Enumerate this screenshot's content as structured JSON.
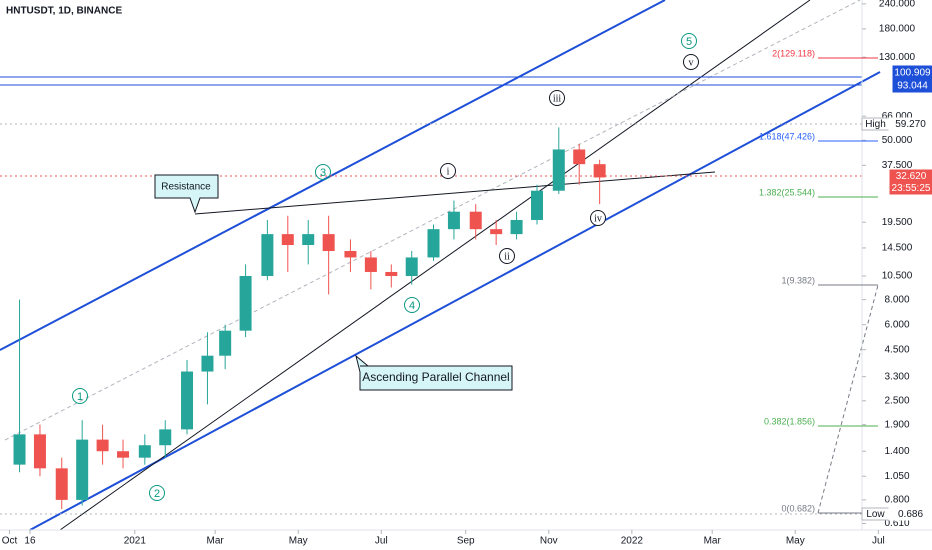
{
  "chart_data": {
    "type": "candlestick",
    "title": "HNTUSDT, 1D, BINANCE",
    "log_scale": true,
    "up_color": "#26a69a",
    "down_color": "#ef5350",
    "x": [
      "2020-10-01",
      "2020-10-16",
      "2020-11-01",
      "2020-11-16",
      "2020-12-01",
      "2020-12-16",
      "2021-01-01",
      "2021-01-16",
      "2021-02-01",
      "2021-02-16",
      "2021-03-01",
      "2021-03-16",
      "2021-04-01",
      "2021-04-16",
      "2021-05-01",
      "2021-05-16",
      "2021-06-01",
      "2021-06-16",
      "2021-07-01",
      "2021-07-16",
      "2021-08-01",
      "2021-08-16",
      "2021-09-01",
      "2021-09-16",
      "2021-10-01",
      "2021-10-16",
      "2021-11-01",
      "2021-11-16",
      "2021-12-01"
    ],
    "open": [
      1.2,
      1.7,
      1.15,
      0.8,
      1.6,
      1.4,
      1.3,
      1.5,
      1.8,
      3.5,
      4.2,
      5.6,
      10.5,
      17,
      15,
      17,
      14,
      13,
      11,
      10.5,
      13,
      18,
      22,
      18,
      17,
      20,
      28,
      45,
      38
    ],
    "high": [
      8.0,
      1.9,
      1.3,
      2.0,
      1.9,
      1.6,
      1.7,
      2.0,
      4.0,
      5.5,
      6.0,
      12,
      20,
      21,
      20,
      21,
      16,
      14,
      12,
      14,
      19,
      25,
      24,
      20,
      22,
      30,
      58,
      48,
      40
    ],
    "low": [
      1.1,
      1.05,
      0.72,
      0.75,
      1.2,
      1.15,
      1.2,
      1.3,
      1.7,
      2.4,
      3.6,
      5.2,
      10,
      11,
      12,
      8.5,
      11,
      9,
      9.2,
      9.5,
      12.5,
      16,
      16,
      15,
      16,
      19,
      27,
      30,
      24
    ],
    "close": [
      1.7,
      1.15,
      0.8,
      1.6,
      1.4,
      1.3,
      1.5,
      1.8,
      3.5,
      4.2,
      5.6,
      10.5,
      17,
      15,
      17,
      14,
      13,
      11,
      10.5,
      13,
      18,
      22,
      18,
      17,
      20,
      28,
      45,
      38,
      32.62
    ],
    "xlim": [
      "2020-09-24",
      "2022-06-19"
    ],
    "xticks": [
      {
        "value": "2020-10-01",
        "label": "Oct"
      },
      {
        "value": "2020-10-16",
        "label": "16"
      },
      {
        "value": "2021-01-01",
        "label": "2021"
      },
      {
        "value": "2021-03-01",
        "label": "Mar"
      },
      {
        "value": "2021-05-01",
        "label": "May"
      },
      {
        "value": "2021-07-01",
        "label": "Jul"
      },
      {
        "value": "2021-09-01",
        "label": "Sep"
      },
      {
        "value": "2021-11-01",
        "label": "Nov"
      },
      {
        "value": "2022-01-01",
        "label": "2022"
      },
      {
        "value": "2022-03-01",
        "label": "Mar"
      },
      {
        "value": "2022-05-01",
        "label": "May"
      },
      {
        "value": "2022-07-01",
        "label": "Jul"
      }
    ],
    "ylim": [
      0.553,
      251
    ],
    "yticks": [
      {
        "value": 240,
        "label": "240.000"
      },
      {
        "value": 180,
        "label": "180.000"
      },
      {
        "value": 130,
        "label": "130.000"
      },
      {
        "value": 66,
        "label": "66.000"
      },
      {
        "value": 50,
        "label": "50.000"
      },
      {
        "value": 37.5,
        "label": "37.500"
      },
      {
        "value": 19.5,
        "label": "19.500"
      },
      {
        "value": 14.5,
        "label": "14.500"
      },
      {
        "value": 10.5,
        "label": "10.500"
      },
      {
        "value": 8,
        "label": "8.000"
      },
      {
        "value": 6,
        "label": "6.000"
      },
      {
        "value": 4.5,
        "label": "4.500"
      },
      {
        "value": 3.3,
        "label": "3.300"
      },
      {
        "value": 2.5,
        "label": "2.500"
      },
      {
        "value": 1.9,
        "label": "1.900"
      },
      {
        "value": 1.4,
        "label": "1.400"
      },
      {
        "value": 1.05,
        "label": "1.050"
      },
      {
        "value": 0.8,
        "label": "0.800"
      },
      {
        "value": 0.61,
        "label": "0.610"
      }
    ],
    "waves": [
      "1",
      "2",
      "3",
      "4",
      "5"
    ],
    "subwaves": [
      "i",
      "ii",
      "iii",
      "iv",
      "v"
    ],
    "callouts": [
      "Resistance",
      "Ascending Parallel Channel"
    ],
    "fib_levels": [
      {
        "label": "2(129.118)",
        "color": "#f23645"
      },
      {
        "label": "1.618(47.426)",
        "color": "#2962ff"
      },
      {
        "label": "1.382(25.544)",
        "color": "#4caf50"
      },
      {
        "label": "1(9.382)",
        "color": "#787b86"
      },
      {
        "label": "0.382(1.856)",
        "color": "#4caf50"
      },
      {
        "label": "0(0.682)",
        "color": "#787b86"
      }
    ],
    "price_labels": {
      "level_1": "100.909",
      "level_2": "93.044",
      "high_tag": "High",
      "high": "59.270",
      "last": "32.620",
      "countdown": "23:55:25",
      "low_tag": "Low",
      "low": "0.686"
    }
  }
}
